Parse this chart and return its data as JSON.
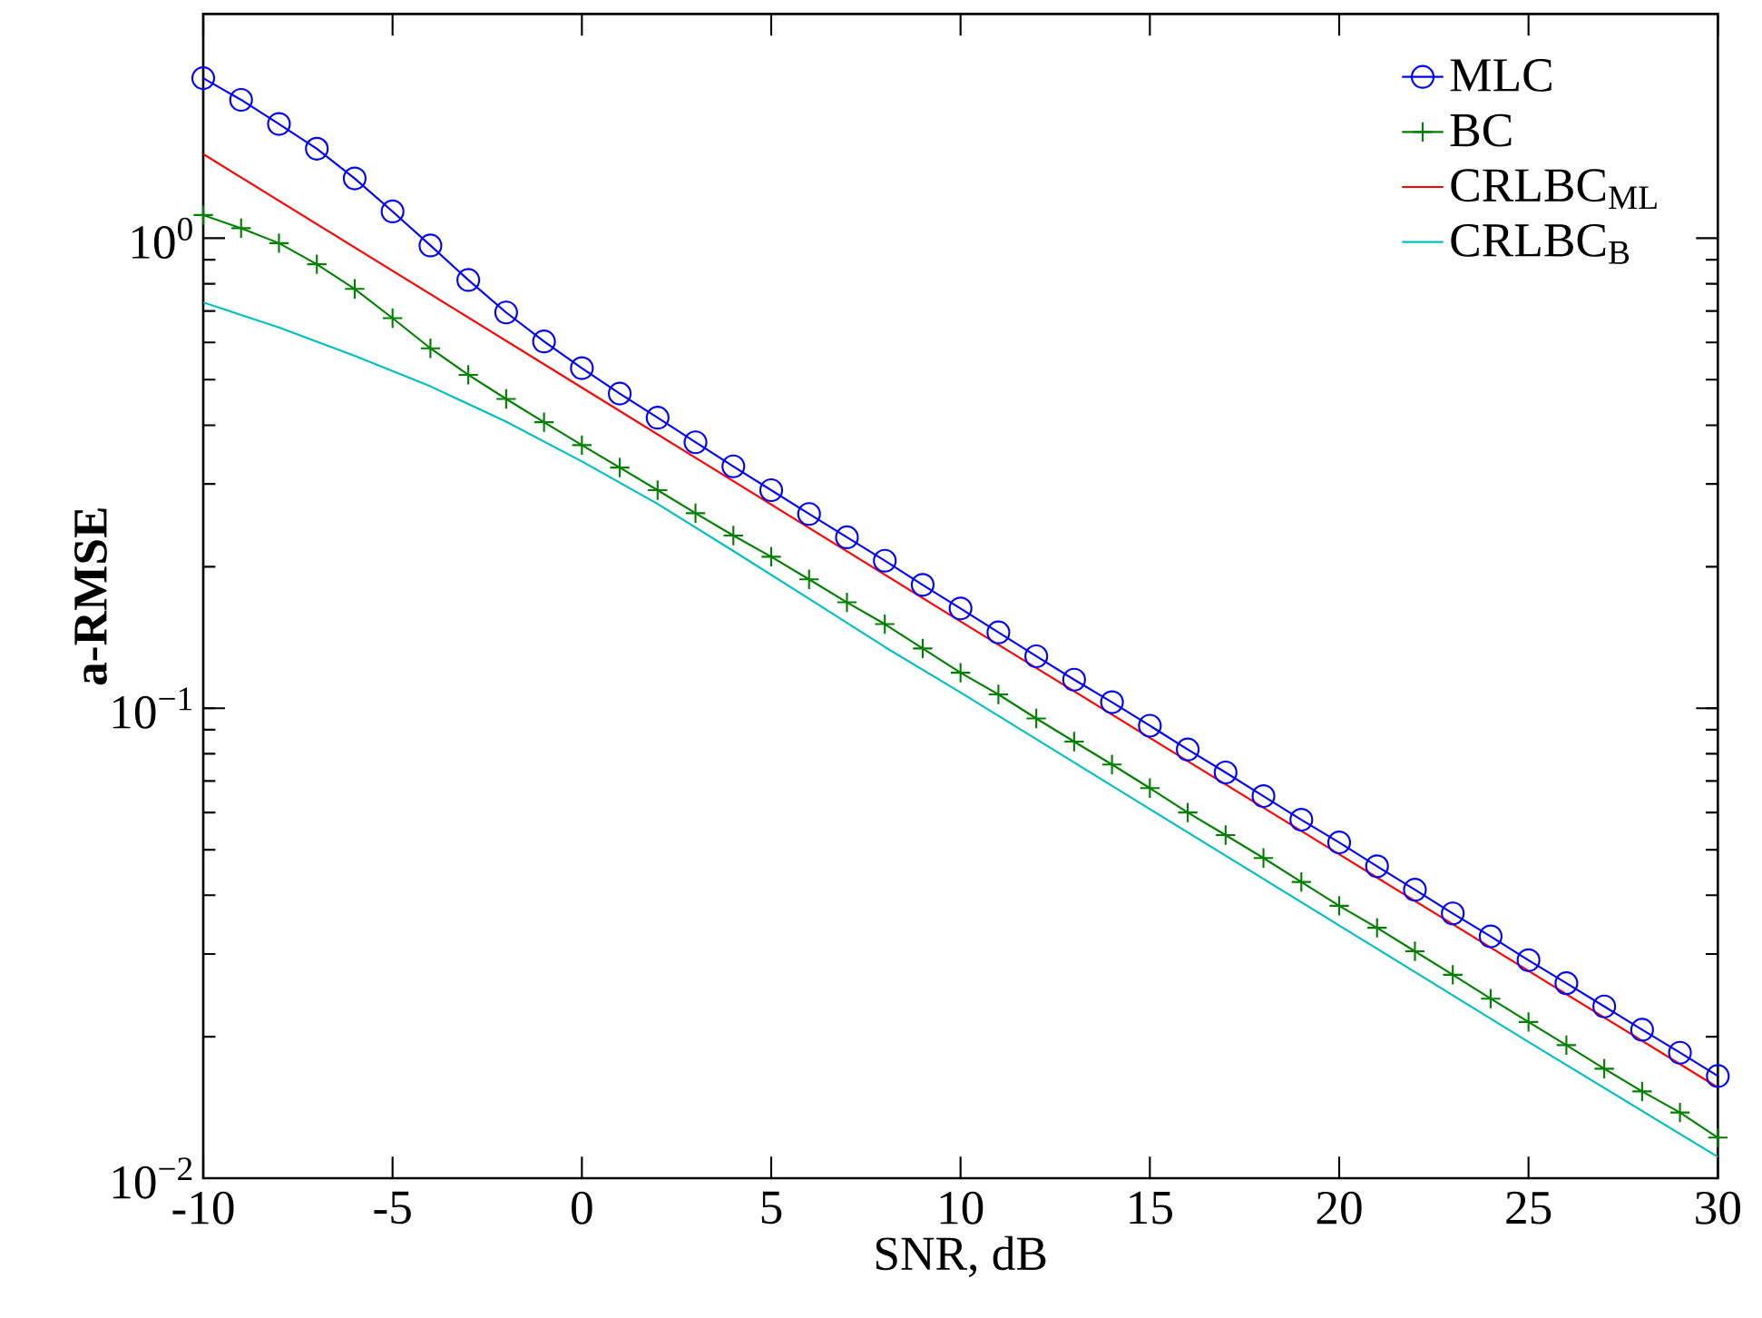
{
  "chart_data": {
    "type": "line",
    "xlabel": "SNR, dB",
    "ylabel": "a-RMSE",
    "log": "y",
    "xlim": [
      -10,
      30
    ],
    "ylim": [
      0.01,
      3
    ],
    "xticks": [
      -10,
      -5,
      0,
      5,
      10,
      15,
      20,
      25,
      30
    ],
    "yticks": [
      {
        "value": 0.01,
        "label": "10$^{−2}$"
      },
      {
        "value": 0.1,
        "label": "10$^{−1}$"
      },
      {
        "value": 1,
        "label": "10$^{0}$"
      }
    ],
    "grid": false,
    "legend": "top right",
    "series": [
      {
        "name": "MLC",
        "color": "#0000ff",
        "marker": "circle",
        "x": [
          -10,
          -9,
          -8,
          -7,
          -6,
          -5,
          -4,
          -3,
          -2,
          -1,
          0,
          1,
          2,
          3,
          4,
          5,
          6,
          7,
          8,
          9,
          10,
          11,
          12,
          13,
          14,
          15,
          16,
          17,
          18,
          19,
          20,
          21,
          22,
          23,
          24,
          25,
          26,
          27,
          28,
          29,
          30
        ],
        "values": [
          2.19,
          1.97,
          1.75,
          1.55,
          1.34,
          1.14,
          0.965,
          0.815,
          0.695,
          0.603,
          0.529,
          0.467,
          0.415,
          0.368,
          0.327,
          0.291,
          0.259,
          0.231,
          0.206,
          0.183,
          0.163,
          0.145,
          0.129,
          0.115,
          0.103,
          0.0918,
          0.0817,
          0.073,
          0.065,
          0.0579,
          0.0518,
          0.0461,
          0.0411,
          0.0366,
          0.0327,
          0.0291,
          0.026,
          0.0232,
          0.0207,
          0.0185,
          0.0165
        ]
      },
      {
        "name": "BC",
        "color": "#008000",
        "marker": "cross",
        "x": [
          -10,
          -9,
          -8,
          -7,
          -6,
          -5,
          -4,
          -3,
          -2,
          -1,
          0,
          1,
          2,
          3,
          4,
          5,
          6,
          7,
          8,
          9,
          10,
          11,
          12,
          13,
          14,
          15,
          16,
          17,
          18,
          19,
          20,
          21,
          22,
          23,
          24,
          25,
          26,
          27,
          28,
          29,
          30
        ],
        "values": [
          1.12,
          1.05,
          0.976,
          0.88,
          0.78,
          0.676,
          0.583,
          0.512,
          0.455,
          0.406,
          0.363,
          0.325,
          0.291,
          0.26,
          0.233,
          0.21,
          0.188,
          0.168,
          0.151,
          0.134,
          0.119,
          0.107,
          0.0951,
          0.0849,
          0.0759,
          0.0676,
          0.06,
          0.0537,
          0.048,
          0.0427,
          0.038,
          0.0341,
          0.0304,
          0.0271,
          0.0241,
          0.0215,
          0.0192,
          0.0171,
          0.0153,
          0.0138,
          0.0122
        ]
      },
      {
        "name": "CRLBC$_{ML}$",
        "color": "#ff0000",
        "marker": "none",
        "x": [
          -10,
          0,
          10,
          20,
          30
        ],
        "values": [
          1.51,
          0.481,
          0.153,
          0.0489,
          0.0156
        ]
      },
      {
        "name": "CRLBC$_{B}$",
        "color": "#00bfbf",
        "marker": "none",
        "x": [
          -10,
          -8,
          -6,
          -4,
          -2,
          0,
          2,
          4,
          6,
          8,
          10,
          15,
          20,
          25,
          30
        ],
        "values": [
          0.73,
          0.646,
          0.562,
          0.484,
          0.407,
          0.335,
          0.272,
          0.216,
          0.171,
          0.135,
          0.108,
          0.061,
          0.0345,
          0.0195,
          0.0111
        ]
      }
    ]
  }
}
